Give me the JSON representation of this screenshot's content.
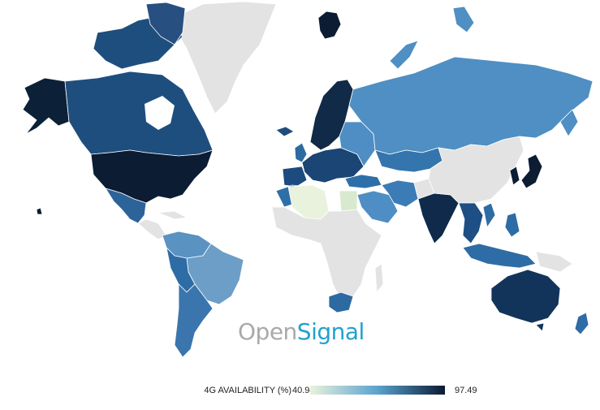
{
  "colors": {
    "no_data": "#e3e3e3",
    "scale_low": "#e9f2dc",
    "scale_mid": "#5aa2cf",
    "scale_high": "#0a1a33"
  },
  "logo": {
    "part1": "Open",
    "part2": "Signal"
  },
  "legend": {
    "label": "4G AVAILABILITY (%)",
    "min": "40.94",
    "max": "97.49",
    "min_value": 40.94,
    "max_value": 97.49
  }
}
